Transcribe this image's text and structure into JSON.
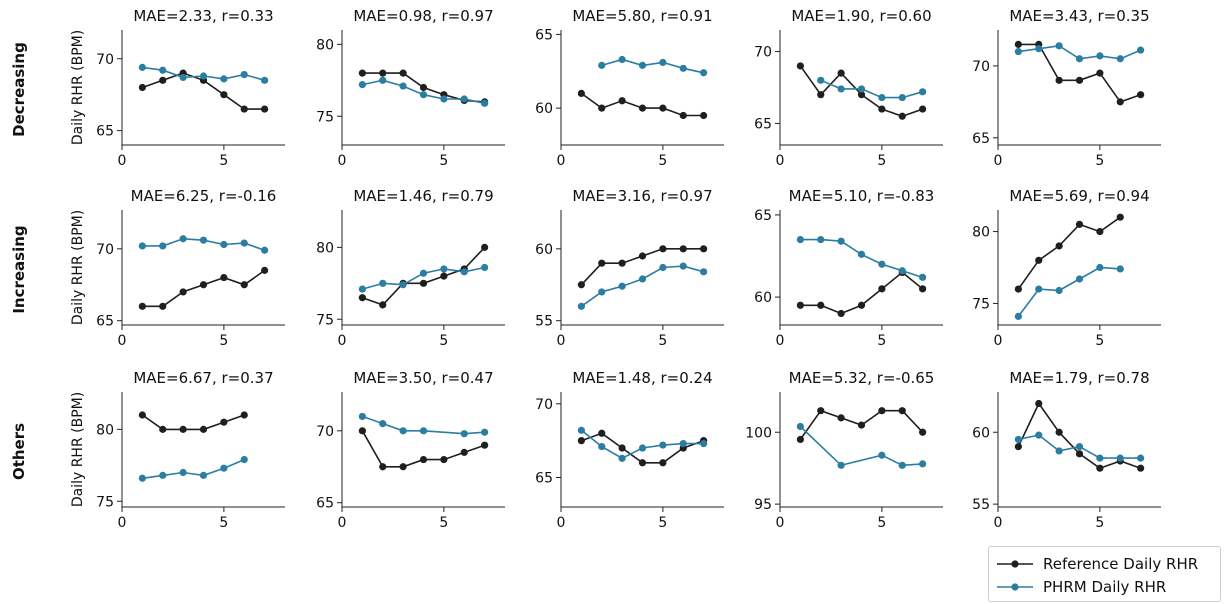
{
  "colors": {
    "reference": "#1f1f1f",
    "phrm": "#2b7ea1"
  },
  "row_labels": [
    "Decreasing",
    "Increasing",
    "Others"
  ],
  "ylabel": "Daily RHR (BPM)",
  "legend": {
    "items": [
      "Reference Daily RHR",
      "PHRM Daily RHR"
    ]
  },
  "chart_data": [
    {
      "type": "line",
      "title": "MAE=2.33, r=0.33",
      "xlim": [
        0,
        8
      ],
      "ylim": [
        64,
        72
      ],
      "xticks": [
        0,
        5
      ],
      "yticks": [
        65,
        70
      ],
      "series": [
        {
          "name": "Reference Daily RHR",
          "x": [
            1,
            2,
            3,
            4,
            5,
            6,
            7
          ],
          "values": [
            68,
            68.5,
            69,
            68.5,
            67.5,
            66.5,
            66.5
          ]
        },
        {
          "name": "PHRM Daily RHR",
          "x": [
            1,
            2,
            3,
            4,
            5,
            6,
            7
          ],
          "values": [
            69.4,
            69.2,
            68.7,
            68.8,
            68.6,
            68.9,
            68.5
          ]
        }
      ]
    },
    {
      "type": "line",
      "title": "MAE=0.98, r=0.97",
      "xlim": [
        0,
        8
      ],
      "ylim": [
        73,
        81
      ],
      "xticks": [
        0,
        5
      ],
      "yticks": [
        75,
        80
      ],
      "series": [
        {
          "name": "Reference Daily RHR",
          "x": [
            1,
            2,
            3,
            4,
            5,
            6,
            7
          ],
          "values": [
            78,
            78,
            78,
            77,
            76.5,
            76.1,
            76
          ]
        },
        {
          "name": "PHRM Daily RHR",
          "x": [
            1,
            2,
            3,
            4,
            5,
            6,
            7
          ],
          "values": [
            77.2,
            77.5,
            77.1,
            76.5,
            76.2,
            76.2,
            75.9
          ]
        }
      ]
    },
    {
      "type": "line",
      "title": "MAE=5.80, r=0.91",
      "xlim": [
        0,
        8
      ],
      "ylim": [
        57.5,
        65.3
      ],
      "xticks": [
        0,
        5
      ],
      "yticks": [
        60,
        65
      ],
      "series": [
        {
          "name": "Reference Daily RHR",
          "x": [
            1,
            2,
            3,
            4,
            5,
            6,
            7
          ],
          "values": [
            61,
            60,
            60.5,
            60,
            60,
            59.5,
            59.5
          ]
        },
        {
          "name": "PHRM Daily RHR",
          "x": [
            2,
            3,
            4,
            5,
            6,
            7
          ],
          "values": [
            62.9,
            63.3,
            62.9,
            63.1,
            62.7,
            62.4
          ]
        }
      ]
    },
    {
      "type": "line",
      "title": "MAE=1.90, r=0.60",
      "xlim": [
        0,
        8
      ],
      "ylim": [
        63.5,
        71.5
      ],
      "xticks": [
        0,
        5
      ],
      "yticks": [
        65,
        70
      ],
      "series": [
        {
          "name": "Reference Daily RHR",
          "x": [
            1,
            2,
            3,
            4,
            5,
            6,
            7
          ],
          "values": [
            69,
            67,
            68.5,
            67,
            66,
            65.5,
            66
          ]
        },
        {
          "name": "PHRM Daily RHR",
          "x": [
            2,
            3,
            4,
            5,
            6,
            7
          ],
          "values": [
            68,
            67.4,
            67.4,
            66.8,
            66.8,
            67.2
          ]
        }
      ]
    },
    {
      "type": "line",
      "title": "MAE=3.43, r=0.35",
      "xlim": [
        0,
        8
      ],
      "ylim": [
        64.5,
        72.5
      ],
      "xticks": [
        0,
        5
      ],
      "yticks": [
        65,
        70
      ],
      "series": [
        {
          "name": "Reference Daily RHR",
          "x": [
            1,
            2,
            3,
            4,
            5,
            6,
            7
          ],
          "values": [
            71.5,
            71.5,
            69,
            69,
            69.5,
            67.5,
            68
          ]
        },
        {
          "name": "PHRM Daily RHR",
          "x": [
            1,
            2,
            3,
            4,
            5,
            6,
            7
          ],
          "values": [
            71,
            71.2,
            71.4,
            70.5,
            70.7,
            70.5,
            71.1
          ]
        }
      ]
    },
    {
      "type": "line",
      "title": "MAE=6.25, r=-0.16",
      "xlim": [
        0,
        8
      ],
      "ylim": [
        64.7,
        72.7
      ],
      "xticks": [
        0,
        5
      ],
      "yticks": [
        65,
        70
      ],
      "series": [
        {
          "name": "Reference Daily RHR",
          "x": [
            1,
            2,
            3,
            4,
            5,
            6,
            7
          ],
          "values": [
            66,
            66,
            67,
            67.5,
            68,
            67.5,
            68.5
          ]
        },
        {
          "name": "PHRM Daily RHR",
          "x": [
            1,
            2,
            3,
            4,
            5,
            6,
            7
          ],
          "values": [
            70.2,
            70.2,
            70.7,
            70.6,
            70.3,
            70.4,
            69.9
          ]
        }
      ]
    },
    {
      "type": "line",
      "title": "MAE=1.46, r=0.79",
      "xlim": [
        0,
        8
      ],
      "ylim": [
        74.6,
        82.6
      ],
      "xticks": [
        0,
        5
      ],
      "yticks": [
        75,
        80
      ],
      "series": [
        {
          "name": "Reference Daily RHR",
          "x": [
            1,
            2,
            3,
            4,
            5,
            6,
            7
          ],
          "values": [
            76.5,
            76,
            77.5,
            77.5,
            78,
            78.5,
            80
          ]
        },
        {
          "name": "PHRM Daily RHR",
          "x": [
            1,
            2,
            3,
            4,
            5,
            6,
            7
          ],
          "values": [
            77.1,
            77.5,
            77.4,
            78.2,
            78.5,
            78.3,
            78.6
          ]
        }
      ]
    },
    {
      "type": "line",
      "title": "MAE=3.16, r=0.97",
      "xlim": [
        0,
        8
      ],
      "ylim": [
        54.7,
        62.7
      ],
      "xticks": [
        0,
        5
      ],
      "yticks": [
        55,
        60
      ],
      "series": [
        {
          "name": "Reference Daily RHR",
          "x": [
            1,
            2,
            3,
            4,
            5,
            6,
            7
          ],
          "values": [
            57.5,
            59,
            59,
            59.5,
            60,
            60,
            60
          ]
        },
        {
          "name": "PHRM Daily RHR",
          "x": [
            1,
            2,
            3,
            4,
            5,
            6,
            7
          ],
          "values": [
            56,
            57,
            57.4,
            57.9,
            58.7,
            58.8,
            58.4
          ]
        }
      ]
    },
    {
      "type": "line",
      "title": "MAE=5.10, r=-0.83",
      "xlim": [
        0,
        8
      ],
      "ylim": [
        58.3,
        65.3
      ],
      "xticks": [
        0,
        5
      ],
      "yticks": [
        60,
        65
      ],
      "series": [
        {
          "name": "Reference Daily RHR",
          "x": [
            1,
            2,
            3,
            4,
            5,
            6,
            7
          ],
          "values": [
            59.5,
            59.5,
            59,
            59.5,
            60.5,
            61.5,
            60.5
          ]
        },
        {
          "name": "PHRM Daily RHR",
          "x": [
            1,
            2,
            3,
            4,
            5,
            6,
            7
          ],
          "values": [
            63.5,
            63.5,
            63.4,
            62.6,
            62,
            61.6,
            61.2
          ]
        }
      ]
    },
    {
      "type": "line",
      "title": "MAE=5.69, r=0.94",
      "xlim": [
        0,
        8
      ],
      "ylim": [
        73.5,
        81.5
      ],
      "xticks": [
        0,
        5
      ],
      "yticks": [
        75,
        80
      ],
      "series": [
        {
          "name": "Reference Daily RHR",
          "x": [
            1,
            2,
            3,
            4,
            5,
            6
          ],
          "values": [
            76,
            78,
            79,
            80.5,
            80,
            81
          ]
        },
        {
          "name": "PHRM Daily RHR",
          "x": [
            1,
            2,
            3,
            4,
            5,
            6
          ],
          "values": [
            74.1,
            76,
            75.9,
            76.7,
            77.5,
            77.4
          ]
        }
      ]
    },
    {
      "type": "line",
      "title": "MAE=6.67, r=0.37",
      "xlim": [
        0,
        8
      ],
      "ylim": [
        74.6,
        82.6
      ],
      "xticks": [
        0,
        5
      ],
      "yticks": [
        75,
        80
      ],
      "series": [
        {
          "name": "Reference Daily RHR",
          "x": [
            1,
            2,
            3,
            4,
            5,
            6
          ],
          "values": [
            81,
            80,
            80,
            80,
            80.5,
            81
          ]
        },
        {
          "name": "PHRM Daily RHR",
          "x": [
            1,
            2,
            3,
            4,
            5,
            6
          ],
          "values": [
            76.6,
            76.8,
            77,
            76.8,
            77.3,
            77.9
          ]
        }
      ]
    },
    {
      "type": "line",
      "title": "MAE=3.50, r=0.47",
      "xlim": [
        0,
        8
      ],
      "ylim": [
        64.7,
        72.7
      ],
      "xticks": [
        0,
        5
      ],
      "yticks": [
        65,
        70
      ],
      "series": [
        {
          "name": "Reference Daily RHR",
          "x": [
            1,
            2,
            3,
            4,
            5,
            6,
            7
          ],
          "values": [
            70,
            67.5,
            67.5,
            68,
            68,
            68.5,
            69
          ]
        },
        {
          "name": "PHRM Daily RHR",
          "x": [
            1,
            2,
            3,
            4,
            6,
            7
          ],
          "values": [
            71,
            70.5,
            70,
            70,
            69.8,
            69.9
          ]
        }
      ]
    },
    {
      "type": "line",
      "title": "MAE=1.48, r=0.24",
      "xlim": [
        0,
        8
      ],
      "ylim": [
        63,
        70.8
      ],
      "xticks": [
        0,
        5
      ],
      "yticks": [
        65,
        70
      ],
      "series": [
        {
          "name": "Reference Daily RHR",
          "x": [
            1,
            2,
            3,
            4,
            5,
            6,
            7
          ],
          "values": [
            67.5,
            68,
            67,
            66,
            66,
            67,
            67.5
          ]
        },
        {
          "name": "PHRM Daily RHR",
          "x": [
            1,
            2,
            3,
            4,
            5,
            6,
            7
          ],
          "values": [
            68.2,
            67.1,
            66.3,
            67,
            67.2,
            67.3,
            67.3
          ]
        }
      ]
    },
    {
      "type": "line",
      "title": "MAE=5.32, r=-0.65",
      "xlim": [
        0,
        8
      ],
      "ylim": [
        94.8,
        102.8
      ],
      "xticks": [
        0,
        5
      ],
      "yticks": [
        95,
        100
      ],
      "series": [
        {
          "name": "Reference Daily RHR",
          "x": [
            1,
            2,
            3,
            4,
            5,
            6,
            7
          ],
          "values": [
            99.5,
            101.5,
            101,
            100.5,
            101.5,
            101.5,
            100
          ]
        },
        {
          "name": "PHRM Daily RHR",
          "x": [
            1,
            3,
            5,
            6,
            7
          ],
          "values": [
            100.4,
            97.7,
            98.4,
            97.7,
            97.8
          ]
        }
      ]
    },
    {
      "type": "line",
      "title": "MAE=1.79, r=0.78",
      "xlim": [
        0,
        8
      ],
      "ylim": [
        54.8,
        62.8
      ],
      "xticks": [
        0,
        5
      ],
      "yticks": [
        55,
        60
      ],
      "series": [
        {
          "name": "Reference Daily RHR",
          "x": [
            1,
            2,
            3,
            4,
            5,
            6,
            7
          ],
          "values": [
            59,
            62,
            60,
            58.5,
            57.5,
            58,
            57.5
          ]
        },
        {
          "name": "PHRM Daily RHR",
          "x": [
            1,
            2,
            3,
            4,
            5,
            6,
            7
          ],
          "values": [
            59.5,
            59.8,
            58.7,
            59,
            58.2,
            58.2,
            58.2
          ]
        }
      ]
    }
  ]
}
